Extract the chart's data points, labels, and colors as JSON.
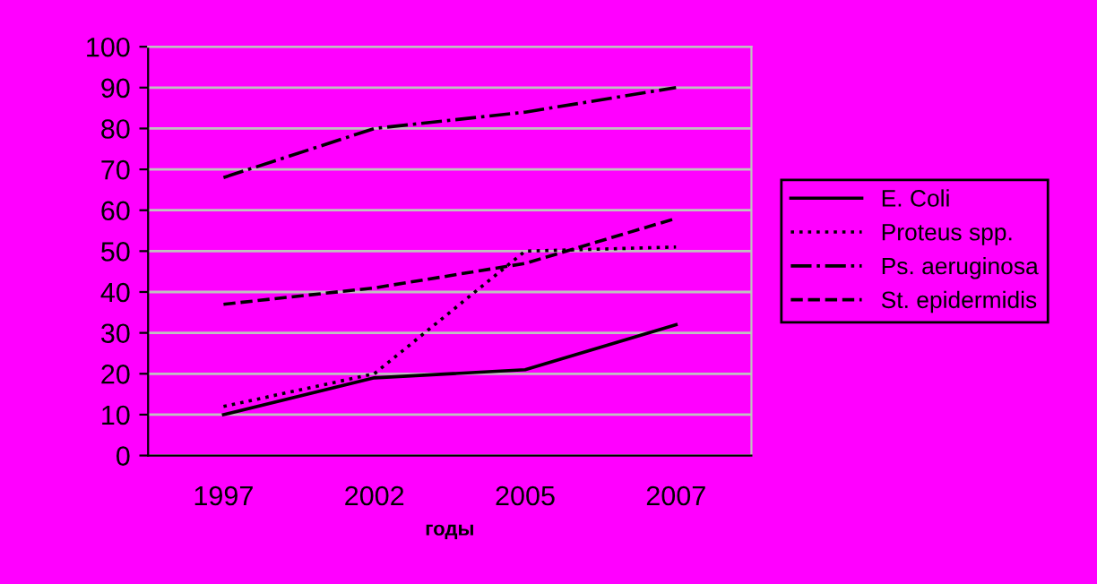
{
  "chart_data": {
    "type": "line",
    "xlabel": "годы",
    "categories": [
      "1997",
      "2002",
      "2005",
      "2007"
    ],
    "series": [
      {
        "name": "E. Coli",
        "color": "#000000",
        "line_style": "solid",
        "values": [
          10,
          19,
          21,
          32
        ]
      },
      {
        "name": "Proteus spp.",
        "color": "#000000",
        "line_style": "dotted",
        "values": [
          12,
          20,
          50,
          51
        ]
      },
      {
        "name": "Ps. aeruginosa",
        "color": "#000000",
        "line_style": "dashdot",
        "values": [
          68,
          80,
          84,
          90
        ]
      },
      {
        "name": "St. epidermidis",
        "color": "#000000",
        "line_style": "dashed",
        "values": [
          37,
          41,
          47,
          58
        ]
      }
    ],
    "ylim": [
      0,
      100
    ],
    "yticks": [
      0,
      10,
      20,
      30,
      40,
      50,
      60,
      70,
      80,
      90,
      100
    ],
    "grid": "y",
    "legend": "right",
    "marker": "none"
  }
}
